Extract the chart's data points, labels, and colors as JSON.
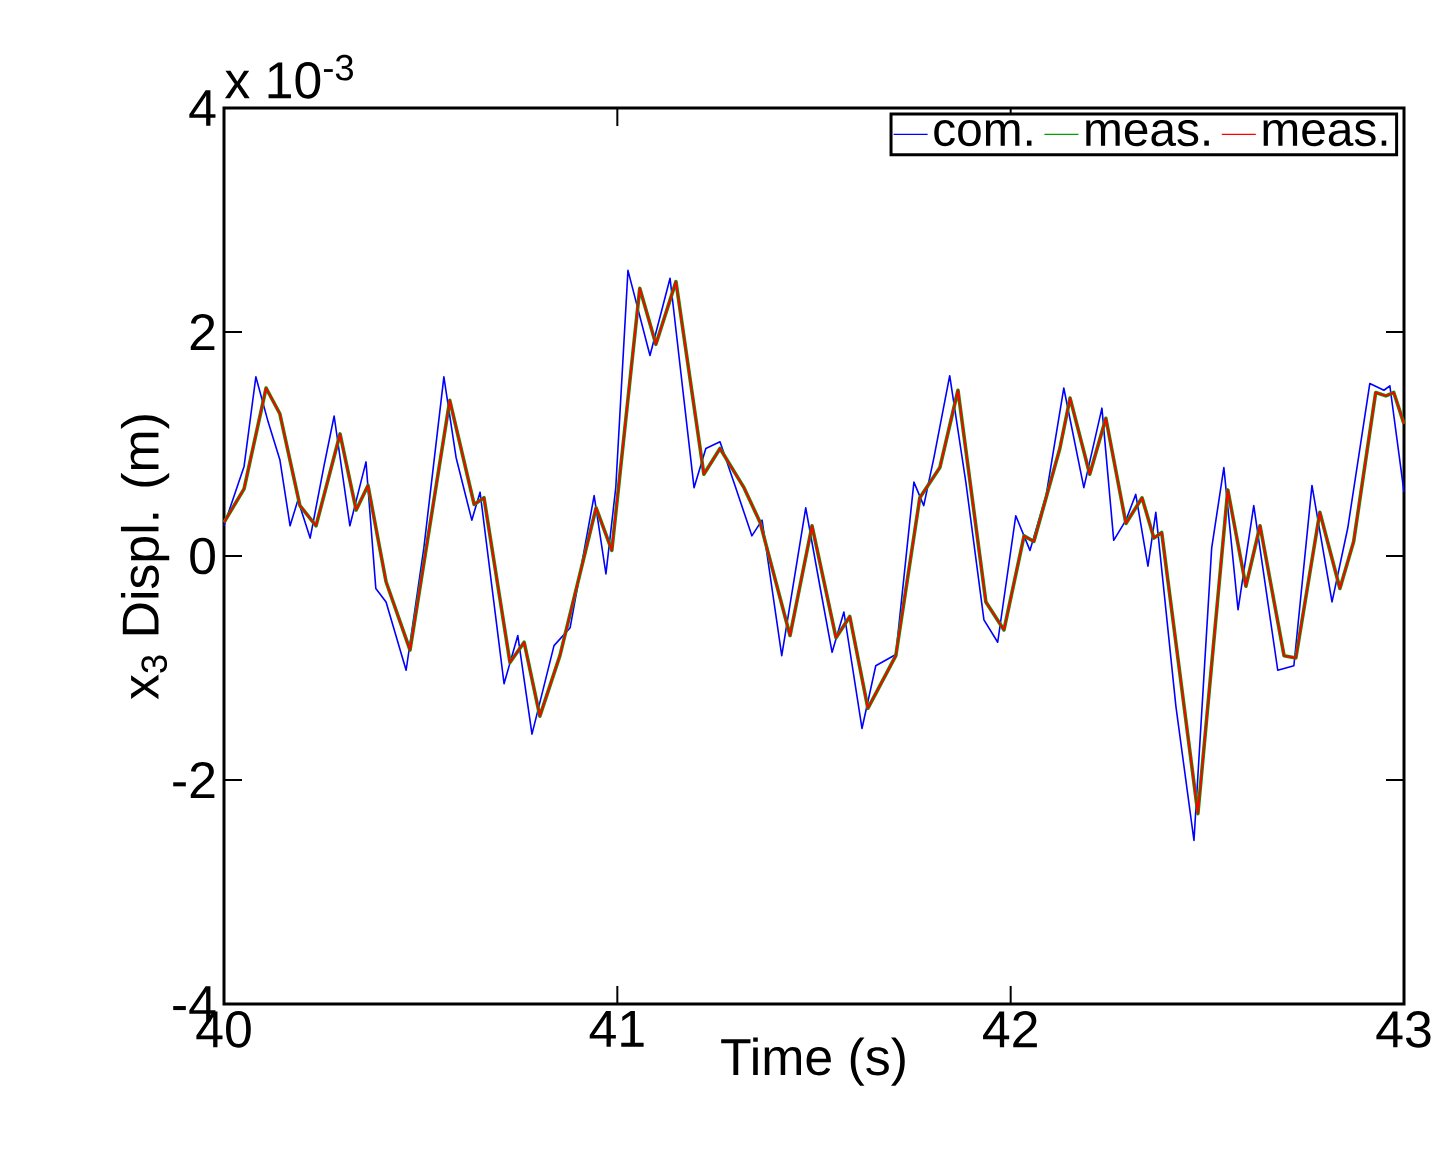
{
  "chart_data": {
    "type": "line",
    "xlabel": "Time (s)",
    "ylabel": "x$_{3}$ Displ. (m)",
    "annotations": [
      "x 10$^{-3}$"
    ],
    "xlim": [
      40,
      43
    ],
    "xticks": [
      40,
      41,
      42,
      43
    ],
    "ylim": [
      -4,
      4
    ],
    "yticks": [
      -4,
      -2,
      0,
      2,
      4
    ],
    "legend": "top right",
    "grid": false,
    "marker": "none",
    "line_style": "solid",
    "series": [
      {
        "name": "com.",
        "color": "#0000ff",
        "x": [
          40.0,
          40.051,
          40.081,
          40.112,
          40.142,
          40.168,
          40.188,
          40.219,
          40.254,
          40.28,
          40.32,
          40.361,
          40.386,
          40.412,
          40.463,
          40.508,
          40.559,
          40.59,
          40.63,
          40.651,
          40.712,
          40.747,
          40.783,
          40.839,
          40.88,
          40.941,
          40.971,
          40.996,
          41.027,
          41.083,
          41.134,
          41.195,
          41.225,
          41.261,
          41.301,
          41.342,
          41.368,
          41.418,
          41.479,
          41.515,
          41.546,
          41.576,
          41.622,
          41.657,
          41.708,
          41.754,
          41.779,
          41.805,
          41.845,
          41.886,
          41.932,
          41.967,
          42.013,
          42.049,
          42.09,
          42.135,
          42.186,
          42.232,
          42.262,
          42.293,
          42.318,
          42.349,
          42.369,
          42.42,
          42.466,
          42.511,
          42.542,
          42.578,
          42.618,
          42.679,
          42.72,
          42.766,
          42.817,
          42.857,
          42.913,
          42.949,
          42.964,
          43.0
        ],
        "values": [
          0.27,
          0.8,
          1.6,
          1.2,
          0.86,
          0.27,
          0.5,
          0.16,
          0.8,
          1.25,
          0.27,
          0.84,
          -0.29,
          -0.41,
          -1.02,
          0.07,
          1.6,
          0.88,
          0.32,
          0.57,
          -1.14,
          -0.71,
          -1.59,
          -0.8,
          -0.64,
          0.54,
          -0.16,
          0.61,
          2.55,
          1.79,
          2.48,
          0.61,
          0.96,
          1.02,
          0.61,
          0.18,
          0.32,
          -0.89,
          0.43,
          -0.27,
          -0.86,
          -0.5,
          -1.54,
          -0.98,
          -0.88,
          0.66,
          0.45,
          0.88,
          1.61,
          0.66,
          -0.57,
          -0.77,
          0.36,
          0.05,
          0.54,
          1.5,
          0.61,
          1.32,
          0.14,
          0.32,
          0.55,
          -0.09,
          0.39,
          -1.34,
          -2.54,
          0.07,
          0.79,
          -0.48,
          0.45,
          -1.02,
          -0.98,
          0.63,
          -0.41,
          0.25,
          1.54,
          1.48,
          1.52,
          0.57
        ]
      },
      {
        "name": "meas.",
        "color": "#00a000",
        "x": [
          40.0,
          40.051,
          40.107,
          40.142,
          40.193,
          40.234,
          40.295,
          40.336,
          40.366,
          40.412,
          40.473,
          40.574,
          40.636,
          40.661,
          40.727,
          40.763,
          40.803,
          40.854,
          40.946,
          40.986,
          41.057,
          41.098,
          41.149,
          41.22,
          41.261,
          41.322,
          41.363,
          41.439,
          41.495,
          41.556,
          41.591,
          41.637,
          41.708,
          41.769,
          41.82,
          41.866,
          41.937,
          41.983,
          42.034,
          42.059,
          42.125,
          42.151,
          42.201,
          42.242,
          42.293,
          42.334,
          42.364,
          42.384,
          42.476,
          42.552,
          42.598,
          42.634,
          42.695,
          42.725,
          42.786,
          42.837,
          42.872,
          42.928,
          42.954,
          42.974,
          43.0
        ],
        "values": [
          0.3,
          0.6,
          1.5,
          1.27,
          0.45,
          0.27,
          1.09,
          0.41,
          0.63,
          -0.23,
          -0.84,
          1.39,
          0.46,
          0.52,
          -0.95,
          -0.77,
          -1.43,
          -0.89,
          0.43,
          0.05,
          2.39,
          1.89,
          2.45,
          0.73,
          0.96,
          0.61,
          0.3,
          -0.71,
          0.27,
          -0.73,
          -0.54,
          -1.36,
          -0.89,
          0.52,
          0.79,
          1.48,
          -0.41,
          -0.66,
          0.18,
          0.13,
          0.96,
          1.41,
          0.73,
          1.23,
          0.29,
          0.52,
          0.16,
          0.21,
          -2.3,
          0.59,
          -0.27,
          0.27,
          -0.89,
          -0.91,
          0.39,
          -0.29,
          0.13,
          1.46,
          1.43,
          1.46,
          1.18
        ]
      },
      {
        "name": "meas.",
        "color": "#ff0000",
        "x": [
          40.0,
          40.051,
          40.107,
          40.142,
          40.193,
          40.234,
          40.295,
          40.336,
          40.366,
          40.412,
          40.473,
          40.574,
          40.636,
          40.661,
          40.727,
          40.763,
          40.803,
          40.854,
          40.946,
          40.986,
          41.057,
          41.098,
          41.149,
          41.22,
          41.261,
          41.322,
          41.363,
          41.439,
          41.495,
          41.556,
          41.591,
          41.637,
          41.708,
          41.769,
          41.82,
          41.866,
          41.937,
          41.983,
          42.034,
          42.059,
          42.125,
          42.151,
          42.201,
          42.242,
          42.293,
          42.334,
          42.364,
          42.384,
          42.476,
          42.552,
          42.598,
          42.634,
          42.695,
          42.725,
          42.786,
          42.837,
          42.872,
          42.928,
          42.954,
          42.974,
          43.0
        ],
        "values": [
          0.3,
          0.6,
          1.5,
          1.27,
          0.45,
          0.27,
          1.09,
          0.41,
          0.63,
          -0.23,
          -0.84,
          1.39,
          0.46,
          0.52,
          -0.95,
          -0.77,
          -1.43,
          -0.89,
          0.43,
          0.05,
          2.39,
          1.89,
          2.45,
          0.73,
          0.96,
          0.61,
          0.3,
          -0.71,
          0.27,
          -0.73,
          -0.54,
          -1.36,
          -0.89,
          0.52,
          0.79,
          1.48,
          -0.41,
          -0.66,
          0.18,
          0.13,
          0.96,
          1.41,
          0.73,
          1.23,
          0.29,
          0.52,
          0.16,
          0.21,
          -2.3,
          0.59,
          -0.27,
          0.27,
          -0.89,
          -0.91,
          0.39,
          -0.29,
          0.13,
          1.46,
          1.43,
          1.46,
          1.18
        ]
      }
    ]
  }
}
